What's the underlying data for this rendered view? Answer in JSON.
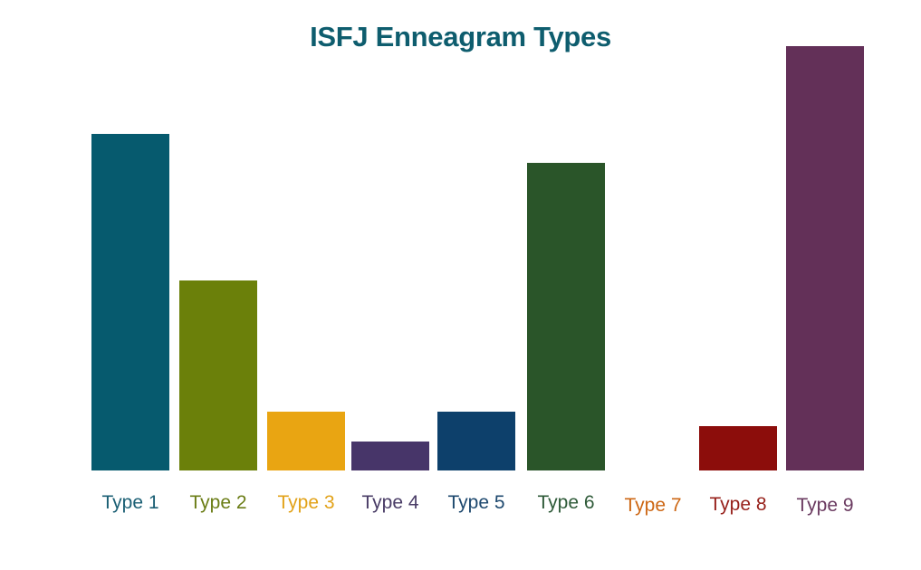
{
  "page": {
    "background": "#ffffff"
  },
  "chart_data": {
    "type": "bar",
    "title": "ISFJ Enneagram Types",
    "title_color": "#0e5d6e",
    "categories": [
      "Type 1",
      "Type 2",
      "Type 3",
      "Type 4",
      "Type 5",
      "Type 6",
      "Type 7",
      "Type 8",
      "Type 9"
    ],
    "values": [
      23,
      13,
      4,
      2,
      4,
      21,
      0,
      3,
      29
    ],
    "values_estimated_from_bar_heights": true,
    "bar_colors": [
      "#065a6e",
      "#6b800a",
      "#e9a512",
      "#473569",
      "#0d406b",
      "#2a5529",
      "#cd6714",
      "#8c0d0b",
      "#633058"
    ],
    "label_colors": [
      "#1b5f74",
      "#6b7d16",
      "#e2a219",
      "#493c66",
      "#1d486e",
      "#2e5a38",
      "#cd6714",
      "#97211b",
      "#6a3a60"
    ],
    "xlabel": "",
    "ylabel": "",
    "ylim": [
      0,
      29
    ],
    "grid": false,
    "legend": false,
    "axis_lines": false
  }
}
